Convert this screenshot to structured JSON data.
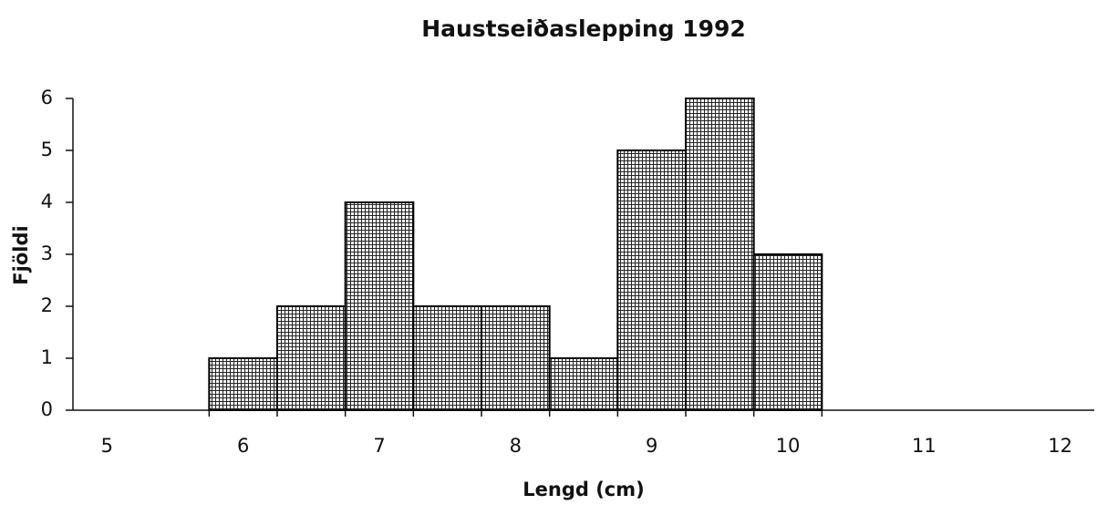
{
  "chart_data": {
    "type": "histogram",
    "title": "Haustseiðaslepping 1992",
    "x_label": "Lengd (cm)",
    "y_label": "Fjöldi",
    "bins": [
      5.75,
      6.25,
      6.75,
      7.25,
      7.75,
      8.25,
      8.75,
      9.25,
      9.75,
      10.25
    ],
    "values": [
      1,
      2,
      4,
      2,
      2,
      1,
      5,
      6,
      3
    ],
    "color": "#000000",
    "xlim": [
      4.75,
      12.25
    ],
    "xticks": [
      5,
      6,
      7,
      8,
      9,
      10,
      11,
      12
    ],
    "ylim": [
      0,
      6
    ],
    "yticks": [
      0,
      1,
      2,
      3,
      4,
      5,
      6
    ],
    "grid": false
  }
}
